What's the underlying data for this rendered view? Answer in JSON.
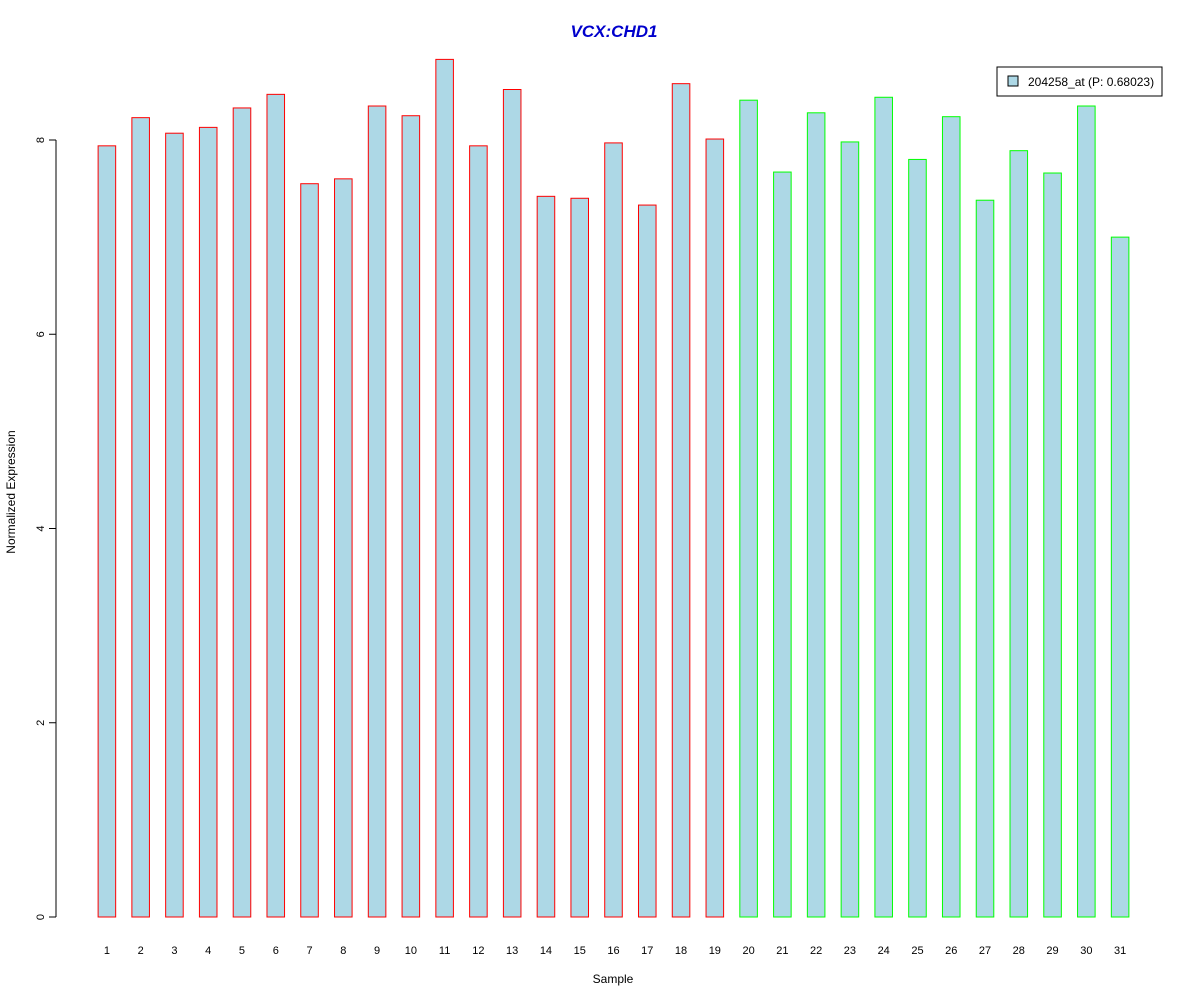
{
  "chart_data": {
    "type": "bar",
    "title": "VCX:CHD1",
    "xlabel": "Sample",
    "ylabel": "Normalized Expression",
    "categories": [
      "1",
      "2",
      "3",
      "4",
      "5",
      "6",
      "7",
      "8",
      "9",
      "10",
      "11",
      "12",
      "13",
      "14",
      "15",
      "16",
      "17",
      "18",
      "19",
      "20",
      "21",
      "22",
      "23",
      "24",
      "25",
      "26",
      "27",
      "28",
      "29",
      "30",
      "31"
    ],
    "series": [
      {
        "name": "204258_at (P: 0.68023)",
        "values": [
          7.94,
          8.23,
          8.07,
          8.13,
          8.33,
          8.47,
          7.55,
          7.6,
          8.35,
          8.25,
          8.83,
          7.94,
          8.52,
          7.42,
          7.4,
          7.97,
          7.33,
          8.58,
          8.01,
          8.41,
          7.67,
          8.28,
          7.98,
          8.44,
          7.8,
          8.24,
          7.38,
          7.89,
          7.66,
          8.35,
          7.0
        ]
      }
    ],
    "ylim": [
      0,
      8.9
    ],
    "yticks": [
      0,
      2,
      4,
      6,
      8
    ],
    "grid": false,
    "legend_position": "top-right",
    "colors": {
      "title": "#0000cc",
      "bar_fill": "#add8e6",
      "group_1_border": "#ff0000",
      "group_2_border": "#00ff00",
      "axis": "#000000"
    },
    "group_1_samples": [
      "1",
      "2",
      "3",
      "4",
      "5",
      "6",
      "7",
      "8",
      "9",
      "10",
      "11",
      "12",
      "13",
      "14",
      "15",
      "16",
      "17",
      "18",
      "19"
    ],
    "group_2_samples": [
      "20",
      "21",
      "22",
      "23",
      "24",
      "25",
      "26",
      "27",
      "28",
      "29",
      "30",
      "31"
    ]
  }
}
